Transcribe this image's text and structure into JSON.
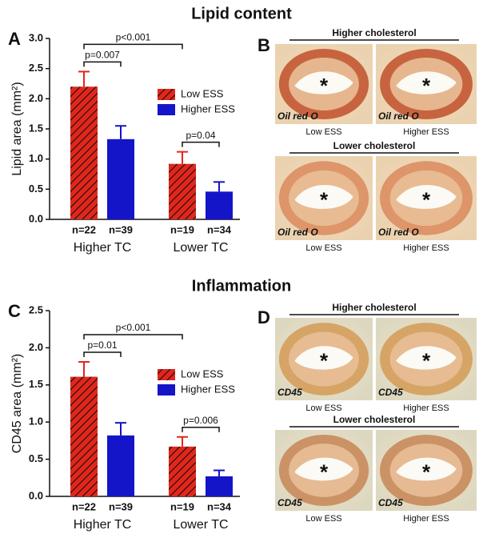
{
  "chart_data": [
    {
      "type": "bar",
      "panel": "A",
      "title": "Lipid content",
      "ylabel": "Lipid area (mm²)",
      "categories": [
        "Higher TC",
        "Lower TC"
      ],
      "series": [
        {
          "name": "Low ESS",
          "color": "#e3261c",
          "hatch": true,
          "values": [
            2.2,
            0.92
          ],
          "errors": [
            0.25,
            0.2
          ],
          "n_labels": [
            "n=22",
            "n=19"
          ]
        },
        {
          "name": "Higher ESS",
          "color": "#1414c8",
          "values": [
            1.33,
            0.46
          ],
          "errors": [
            0.22,
            0.16
          ],
          "n_labels": [
            "n=39",
            "n=34"
          ]
        }
      ],
      "ylim": [
        0,
        3.0
      ],
      "yticks": [
        {
          "value": 0,
          "label": "0.0"
        },
        0.5,
        {
          "value": 1,
          "label": "1.0"
        },
        1.5,
        {
          "value": 2,
          "label": "2.0"
        },
        2.5,
        {
          "value": 3,
          "label": "3.0"
        }
      ],
      "annotations": [
        "p<0.001",
        "p=0.007",
        "p=0.04"
      ]
    },
    {
      "type": "bar",
      "panel": "C",
      "title": "Inflammation",
      "ylabel": "CD45 area (mm²)",
      "categories": [
        "Higher TC",
        "Lower TC"
      ],
      "series": [
        {
          "name": "Low ESS",
          "color": "#e3261c",
          "hatch": true,
          "values": [
            1.61,
            0.67
          ],
          "errors": [
            0.2,
            0.13
          ],
          "n_labels": [
            "n=22",
            "n=19"
          ]
        },
        {
          "name": "Higher ESS",
          "color": "#1414c8",
          "values": [
            0.82,
            0.27
          ],
          "errors": [
            0.17,
            0.08
          ],
          "n_labels": [
            "n=39",
            "n=34"
          ]
        }
      ],
      "ylim": [
        0,
        2.5
      ],
      "yticks": [
        {
          "value": 0,
          "label": "0.0"
        },
        0.5,
        {
          "value": 1,
          "label": "1.0"
        },
        1.5,
        {
          "value": 2,
          "label": "2.0"
        },
        2.5
      ],
      "annotations": [
        "p<0.001",
        "p=0.01",
        "p=0.006"
      ]
    }
  ],
  "panels": [
    {
      "panel": "B",
      "groups": [
        {
          "heading": "Higher cholesterol",
          "images": [
            {
              "stain": "Oil red O",
              "caption": "Low ESS",
              "marker": "*"
            },
            {
              "stain": "Oil red O",
              "caption": "Higher ESS",
              "marker": "*"
            }
          ]
        },
        {
          "heading": "Lower cholesterol",
          "images": [
            {
              "stain": "Oil red O",
              "caption": "Low ESS",
              "marker": "*"
            },
            {
              "stain": "Oil red O",
              "caption": "Higher ESS",
              "marker": "*"
            }
          ]
        }
      ]
    },
    {
      "panel": "D",
      "groups": [
        {
          "heading": "Higher cholesterol",
          "images": [
            {
              "stain": "CD45",
              "caption": "Low ESS",
              "marker": "*"
            },
            {
              "stain": "CD45",
              "caption": "Higher ESS",
              "marker": "*"
            }
          ]
        },
        {
          "heading": "Lower cholesterol",
          "images": [
            {
              "stain": "CD45",
              "caption": "Low ESS",
              "marker": "*"
            },
            {
              "stain": "CD45",
              "caption": "Higher ESS",
              "marker": "*"
            }
          ]
        }
      ]
    }
  ]
}
